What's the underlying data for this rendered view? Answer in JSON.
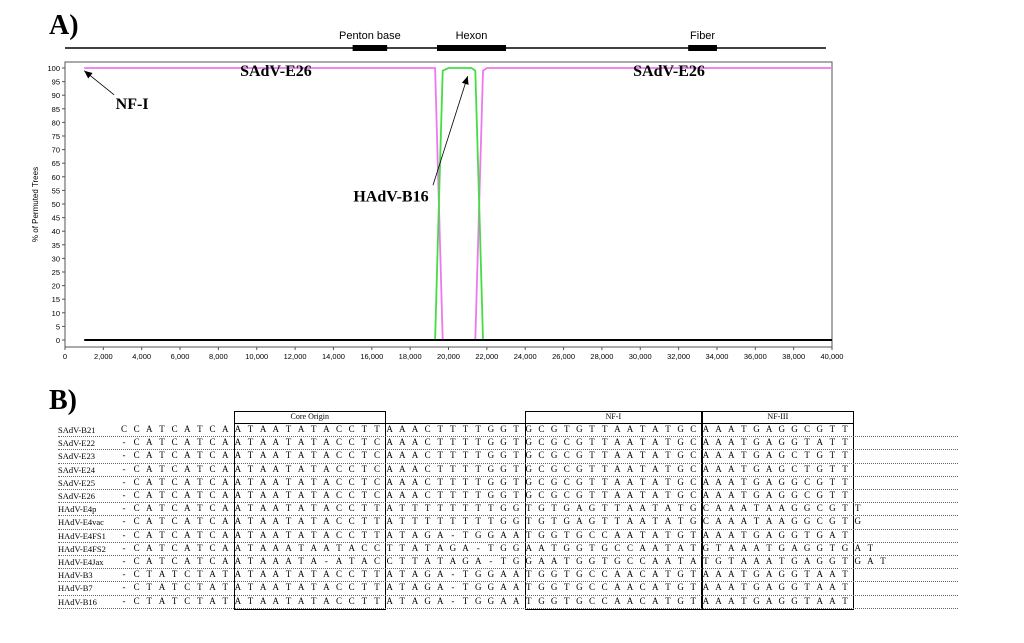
{
  "panels": {
    "a_label": "A)",
    "b_label": "B)"
  },
  "chart_data": {
    "type": "line",
    "ylabel": "% of Permuted Trees",
    "xlim": [
      0,
      40000
    ],
    "ylim": [
      0,
      100
    ],
    "x_ticks": [
      0,
      2000,
      4000,
      6000,
      8000,
      10000,
      12000,
      14000,
      16000,
      18000,
      20000,
      22000,
      24000,
      26000,
      28000,
      30000,
      32000,
      34000,
      36000,
      38000,
      40000
    ],
    "x_tick_labels": [
      "0",
      "2,000",
      "4,000",
      "6,000",
      "8,000",
      "10,000",
      "12,000",
      "14,000",
      "16,000",
      "18,000",
      "20,000",
      "22,000",
      "24,000",
      "26,000",
      "28,000",
      "30,000",
      "32,000",
      "34,000",
      "36,000",
      "38,000",
      "40,000"
    ],
    "y_ticks": [
      0,
      5,
      10,
      15,
      20,
      25,
      30,
      35,
      40,
      45,
      50,
      55,
      60,
      65,
      70,
      75,
      80,
      85,
      90,
      95,
      100
    ],
    "colors": {
      "magenta": "#ee77ee",
      "green": "#44dd44",
      "black": "#000000"
    },
    "series": [
      {
        "color": "#ee77ee",
        "points": [
          [
            1000,
            100
          ],
          [
            19300,
            100
          ],
          [
            19500,
            50
          ],
          [
            19700,
            0
          ],
          [
            21400,
            0
          ],
          [
            21600,
            50
          ],
          [
            21800,
            99
          ],
          [
            22000,
            100
          ],
          [
            40000,
            100
          ]
        ]
      },
      {
        "color": "#44dd44",
        "points": [
          [
            19300,
            0
          ],
          [
            19500,
            50
          ],
          [
            19700,
            99
          ],
          [
            20000,
            100
          ],
          [
            21200,
            100
          ],
          [
            21400,
            99
          ],
          [
            21600,
            50
          ],
          [
            21800,
            0
          ]
        ]
      },
      {
        "color": "#000000",
        "points": [
          [
            1000,
            0
          ],
          [
            40000,
            0
          ]
        ]
      }
    ],
    "genome_map": {
      "genes": [
        {
          "name": "Penton base",
          "start": 15000,
          "end": 16800
        },
        {
          "name": "Hexon",
          "start": 19400,
          "end": 23000
        },
        {
          "name": "Fiber",
          "start": 32500,
          "end": 34000
        }
      ]
    },
    "annotations": [
      {
        "text": "SAdV-E26",
        "x": 11000,
        "y": 97
      },
      {
        "text": "SAdV-E26",
        "x": 31500,
        "y": 97
      },
      {
        "text": "NF-I",
        "x": 3500,
        "y": 85,
        "arrow_to": [
          1000,
          99
        ]
      },
      {
        "text": "HAdV-B16",
        "x": 17000,
        "y": 51,
        "arrow_to": [
          21000,
          97
        ]
      }
    ]
  },
  "alignment": {
    "regions": [
      {
        "name": "Core Origin",
        "start": 9,
        "end": 21
      },
      {
        "name": "NF-I",
        "start": 32,
        "end": 46
      },
      {
        "name": "NF-III",
        "start": 46,
        "end": 58
      }
    ],
    "rows": [
      {
        "name": "SAdV-B21",
        "seq": "CCATCATCAATAATATACCTTAAACTTTTGGTGCGTGTTAATATGCAAATGAGGCGTT"
      },
      {
        "name": "SAdV-E22",
        "seq": "-CATCATCAATAATATACCTCAAACTTTTGGTGCGCGTTAATATGCAAATGAGGTATT"
      },
      {
        "name": "SAdV-E23",
        "seq": "-CATCATCAATAATATACCTCAAACTTTTGGTGCGCGTTAATATGCAAATGAGCTGTT"
      },
      {
        "name": "SAdV-E24",
        "seq": "-CATCATCAATAATATACCTCAAACTTTTGGTGCGCGTTAATATGCAAATGAGCTGTT"
      },
      {
        "name": "SAdV-E25",
        "seq": "-CATCATCAATAATATACCTCAAACTTTTGGTGCGCGTTAATATGCAAATGAGGCGTT"
      },
      {
        "name": "SAdV-E26",
        "seq": "-CATCATCAATAATATACCTCAAACTTTTGGTGCGCGTTAATATGCAAATGAGGCGTT"
      },
      {
        "name": "HAdV-E4p",
        "seq": "-CATCATCAATAATATACCTTATTTTTTTTGGTGTGAGTTAATATGCAAATAAGGCGTT"
      },
      {
        "name": "HAdV-E4vac",
        "seq": "-CATCATCAATAATATACCTTATTTTTTTTGGTGTGAGTTAATATGCAAATAAGGCGTG"
      },
      {
        "name": "HAdV-E4FS1",
        "seq": "-CATCATCAATAATATACCTTATAGA-TGGAATGGTGCCAATATGTAAATGAGGTGAT"
      },
      {
        "name": "HAdV-E4FS2",
        "seq": "-CATCATCAATAAATAATACCTTATAGA-TGGAATGGTGCCAATATGTAAATGAGGTGAT"
      },
      {
        "name": "HAdV-E4Jax",
        "seq": "-CATCATCAATAAATA-ATACCTTATAGA-TGGAATGGTGCCAATATGTAAATGAGGTGAT"
      },
      {
        "name": "HAdV-B3",
        "seq": "-CTATCTATATAATATACCTTATAGA-TGGAATGGTGCCAACATGTAAATGAGGTAAT"
      },
      {
        "name": "HAdV-B7",
        "seq": "-CTATCTATATAATATACCTTATAGA-TGGAATGGTGCCAACATGTAAATGAGGTAAT"
      },
      {
        "name": "HAdV-B16",
        "seq": "-CTATCTATATAATATACCTTATAGA-TGGAATGGTGCCAACATGTAAATGAGGTAAT"
      }
    ]
  }
}
